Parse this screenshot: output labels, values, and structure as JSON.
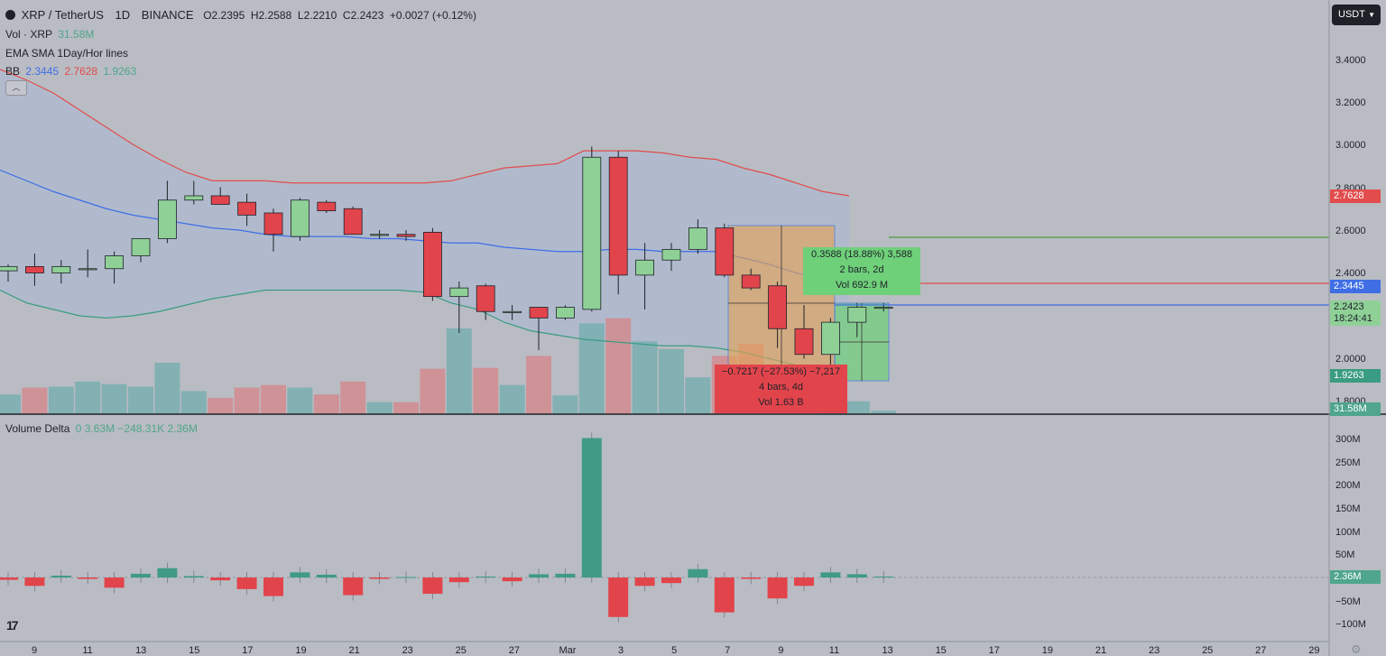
{
  "header": {
    "symbol": "XRP / TetherUS",
    "interval": "1D",
    "exchange": "BINANCE",
    "open": "O2.2395",
    "high": "H2.2588",
    "low": "L2.2210",
    "close": "C2.2423",
    "change": "+0.0027 (+0.12%)",
    "currency_button": "USDT"
  },
  "indicators": {
    "vol_label": "Vol · XRP",
    "vol_value": "31.58M",
    "ema_sma_label": "EMA SMA 1Day/Hor lines",
    "bb_label": "BB",
    "bb_middle": "2.3445",
    "bb_upper": "2.7628",
    "bb_lower": "1.9263",
    "delta_label": "Volume Delta",
    "delta_values": "0  3.63M  −248.31K  2.36M"
  },
  "price_labels": {
    "upper_bb": "2.7628",
    "middle_bb": "2.3445",
    "last_price": "2.2423",
    "countdown": "18:24:41",
    "lower_bb": "1.9263",
    "volume": "31.58M",
    "delta": "2.36M"
  },
  "measurements": {
    "up": {
      "line1": "0.3588 (18.88%) 3,588",
      "line2": "2 bars, 2d",
      "line3": "Vol 692.9 M"
    },
    "down": {
      "line1": "−0.7217 (−27.53%) −7,217",
      "line2": "4 bars, 4d",
      "line3": "Vol 1.63 B"
    }
  },
  "colors": {
    "up": "#8fd097",
    "down": "#e2444c",
    "bb_upper": "#e24c4c",
    "bb_middle": "#3f6ee5",
    "bb_lower": "#3a9c82",
    "vol_up": "#79aeb0",
    "vol_down": "#d28b8e"
  },
  "chart_data": {
    "type": "candlestick",
    "price_axis_ticks": [
      "3.4000",
      "3.2000",
      "3.0000",
      "2.8000",
      "2.6000",
      "2.4000",
      "2.0000",
      "1.8000"
    ],
    "delta_axis_ticks": [
      "300M",
      "250M",
      "200M",
      "150M",
      "100M",
      "50M",
      "−50M",
      "−100M"
    ],
    "x_tick_labels": [
      "9",
      "11",
      "13",
      "15",
      "17",
      "19",
      "21",
      "23",
      "25",
      "27",
      "Mar",
      "3",
      "5",
      "7",
      "9",
      "11",
      "13",
      "15",
      "17",
      "19",
      "21",
      "23",
      "25",
      "27",
      "29"
    ],
    "candles": [
      {
        "o": 2.41,
        "h": 2.44,
        "l": 2.36,
        "c": 2.43
      },
      {
        "o": 2.43,
        "h": 2.49,
        "l": 2.34,
        "c": 2.4
      },
      {
        "o": 2.4,
        "h": 2.46,
        "l": 2.35,
        "c": 2.43
      },
      {
        "o": 2.42,
        "h": 2.51,
        "l": 2.38,
        "c": 2.42
      },
      {
        "o": 2.42,
        "h": 2.5,
        "l": 2.35,
        "c": 2.48
      },
      {
        "o": 2.48,
        "h": 2.56,
        "l": 2.45,
        "c": 2.56
      },
      {
        "o": 2.56,
        "h": 2.83,
        "l": 2.54,
        "c": 2.74
      },
      {
        "o": 2.74,
        "h": 2.83,
        "l": 2.72,
        "c": 2.76
      },
      {
        "o": 2.76,
        "h": 2.8,
        "l": 2.72,
        "c": 2.72
      },
      {
        "o": 2.73,
        "h": 2.77,
        "l": 2.62,
        "c": 2.67
      },
      {
        "o": 2.68,
        "h": 2.7,
        "l": 2.5,
        "c": 2.58
      },
      {
        "o": 2.57,
        "h": 2.75,
        "l": 2.55,
        "c": 2.74
      },
      {
        "o": 2.73,
        "h": 2.74,
        "l": 2.68,
        "c": 2.69
      },
      {
        "o": 2.7,
        "h": 2.71,
        "l": 2.58,
        "c": 2.58
      },
      {
        "o": 2.58,
        "h": 2.6,
        "l": 2.56,
        "c": 2.58
      },
      {
        "o": 2.58,
        "h": 2.6,
        "l": 2.55,
        "c": 2.57
      },
      {
        "o": 2.59,
        "h": 2.61,
        "l": 2.27,
        "c": 2.29
      },
      {
        "o": 2.29,
        "h": 2.36,
        "l": 2.12,
        "c": 2.33
      },
      {
        "o": 2.34,
        "h": 2.35,
        "l": 2.18,
        "c": 2.22
      },
      {
        "o": 2.22,
        "h": 2.25,
        "l": 2.18,
        "c": 2.22
      },
      {
        "o": 2.24,
        "h": 2.24,
        "l": 2.04,
        "c": 2.19
      },
      {
        "o": 2.19,
        "h": 2.25,
        "l": 2.18,
        "c": 2.24
      },
      {
        "o": 2.23,
        "h": 2.99,
        "l": 2.22,
        "c": 2.94
      },
      {
        "o": 2.94,
        "h": 2.97,
        "l": 2.3,
        "c": 2.39
      },
      {
        "o": 2.39,
        "h": 2.54,
        "l": 2.23,
        "c": 2.46
      },
      {
        "o": 2.46,
        "h": 2.54,
        "l": 2.41,
        "c": 2.51
      },
      {
        "o": 2.51,
        "h": 2.65,
        "l": 2.49,
        "c": 2.61
      },
      {
        "o": 2.61,
        "h": 2.63,
        "l": 2.38,
        "c": 2.39
      },
      {
        "o": 2.39,
        "h": 2.42,
        "l": 2.32,
        "c": 2.33
      },
      {
        "o": 2.34,
        "h": 2.36,
        "l": 2.05,
        "c": 2.14
      },
      {
        "o": 2.14,
        "h": 2.25,
        "l": 2.0,
        "c": 2.02
      },
      {
        "o": 2.02,
        "h": 2.19,
        "l": 1.92,
        "c": 2.17
      },
      {
        "o": 2.17,
        "h": 2.26,
        "l": 2.1,
        "c": 2.24
      },
      {
        "o": 2.24,
        "h": 2.26,
        "l": 2.22,
        "c": 2.24
      }
    ],
    "volume_rel": [
      0.23,
      0.31,
      0.32,
      0.38,
      0.35,
      0.32,
      0.6,
      0.27,
      0.19,
      0.31,
      0.34,
      0.31,
      0.23,
      0.38,
      0.14,
      0.14,
      0.53,
      1.0,
      0.54,
      0.34,
      0.68,
      0.22,
      1.06,
      1.12,
      0.85,
      0.76,
      0.43,
      0.68,
      0.82,
      0.52,
      0.42,
      0.28,
      0.15,
      0.04
    ],
    "volume_delta": [
      -5,
      -18,
      4,
      -3,
      -22,
      8,
      20,
      3,
      -6,
      -25,
      -40,
      11,
      6,
      -38,
      -3,
      1,
      -35,
      -10,
      2,
      -8,
      7,
      8,
      300,
      -85,
      -18,
      -12,
      18,
      -75,
      -3,
      -45,
      -18,
      11,
      7,
      2
    ],
    "bb_upper": [
      3.35,
      3.3,
      3.24,
      3.16,
      3.08,
      3.0,
      2.93,
      2.87,
      2.83,
      2.83,
      2.83,
      2.82,
      2.82,
      2.82,
      2.82,
      2.82,
      2.82,
      2.83,
      2.86,
      2.89,
      2.9,
      2.91,
      2.97,
      2.97,
      2.97,
      2.96,
      2.94,
      2.93,
      2.89,
      2.86,
      2.82,
      2.78,
      2.76
    ],
    "bb_middle": [
      2.88,
      2.83,
      2.78,
      2.74,
      2.7,
      2.67,
      2.65,
      2.63,
      2.61,
      2.6,
      2.58,
      2.57,
      2.57,
      2.57,
      2.56,
      2.56,
      2.55,
      2.54,
      2.54,
      2.52,
      2.51,
      2.5,
      2.5,
      2.51,
      2.51,
      2.5,
      2.5,
      2.5,
      2.47,
      2.44,
      2.4,
      2.37,
      2.35
    ],
    "bb_lower": [
      2.32,
      2.26,
      2.23,
      2.2,
      2.19,
      2.2,
      2.22,
      2.25,
      2.28,
      2.3,
      2.32,
      2.32,
      2.32,
      2.32,
      2.32,
      2.32,
      2.31,
      2.26,
      2.23,
      2.17,
      2.13,
      2.11,
      2.09,
      2.08,
      2.07,
      2.06,
      2.06,
      2.05,
      2.03,
      2.0,
      1.97,
      1.94,
      1.93
    ]
  }
}
